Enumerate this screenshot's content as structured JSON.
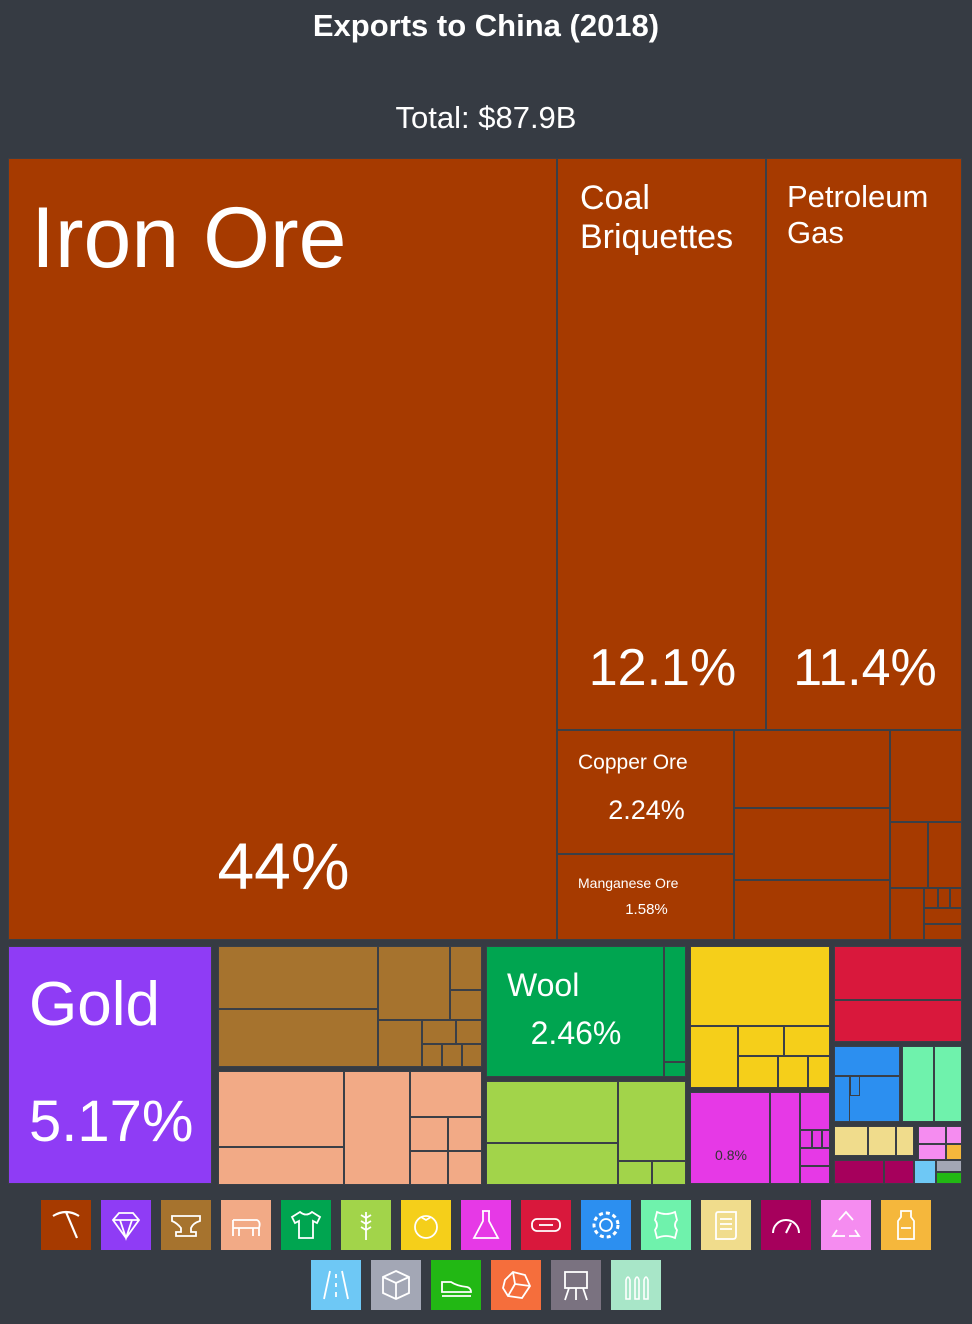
{
  "header": {
    "title": "Exports to China (2018)",
    "total": "Total: $87.9B"
  },
  "chart_data": {
    "type": "treemap",
    "title": "Exports to China (2018)",
    "total_label": "Total: $87.9B",
    "labeled_items": [
      {
        "name": "Iron Ore",
        "share_pct": 44,
        "share_label": "44%",
        "category": "mineral-products",
        "color": "#a63a00"
      },
      {
        "name": "Coal Briquettes",
        "share_pct": 12.1,
        "share_label": "12.1%",
        "category": "mineral-products",
        "color": "#a63a00"
      },
      {
        "name": "Petroleum Gas",
        "share_pct": 11.4,
        "share_label": "11.4%",
        "category": "mineral-products",
        "color": "#a63a00"
      },
      {
        "name": "Copper Ore",
        "share_pct": 2.24,
        "share_label": "2.24%",
        "category": "mineral-products",
        "color": "#a63a00"
      },
      {
        "name": "Manganese Ore",
        "share_pct": 1.58,
        "share_label": "1.58%",
        "category": "mineral-products",
        "color": "#a63a00"
      },
      {
        "name": "Gold",
        "share_pct": 5.17,
        "share_label": "5.17%",
        "category": "precious-metals",
        "color": "#8f3cf5"
      },
      {
        "name": "Wool",
        "share_pct": 2.46,
        "share_label": "2.46%",
        "category": "textiles",
        "color": "#00a550"
      },
      {
        "name": "",
        "share_pct": 0.8,
        "share_label": "0.8%",
        "category": "chemical-products",
        "color": "#e639e6"
      }
    ],
    "legend": [
      {
        "icon": "pickaxe-icon",
        "category": "mineral-products",
        "color": "#a63a00"
      },
      {
        "icon": "diamond-icon",
        "category": "precious-metals",
        "color": "#8f3cf5"
      },
      {
        "icon": "anvil-icon",
        "category": "metals",
        "color": "#a6732e"
      },
      {
        "icon": "pig-icon",
        "category": "animal-products",
        "color": "#f2aa86"
      },
      {
        "icon": "shirt-icon",
        "category": "textiles",
        "color": "#00a550"
      },
      {
        "icon": "wheat-icon",
        "category": "vegetable-products",
        "color": "#a2d44a"
      },
      {
        "icon": "tomato-icon",
        "category": "foodstuffs",
        "color": "#f5cf1a"
      },
      {
        "icon": "flask-icon",
        "category": "chemical-products",
        "color": "#e639e6"
      },
      {
        "icon": "pipe-icon",
        "category": "plastics-rubbers",
        "color": "#d9183c"
      },
      {
        "icon": "gear-icon",
        "category": "machines",
        "color": "#2c8ff0"
      },
      {
        "icon": "hide-icon",
        "category": "animal-hides",
        "color": "#6ff2ac"
      },
      {
        "icon": "scroll-icon",
        "category": "paper-goods",
        "color": "#f0dc8c"
      },
      {
        "icon": "gauge-icon",
        "category": "instruments",
        "color": "#a6005c"
      },
      {
        "icon": "recycle-icon",
        "category": "miscellaneous",
        "color": "#f58cf0"
      },
      {
        "icon": "bottle-icon",
        "category": "animal-vegetable-fats",
        "color": "#f5b73c"
      },
      {
        "icon": "road-icon",
        "category": "transportation",
        "color": "#6ec8f5"
      },
      {
        "icon": "box-icon",
        "category": "stone-glass",
        "color": "#a3a7b5"
      },
      {
        "icon": "shoe-icon",
        "category": "footwear-headwear",
        "color": "#22b814"
      },
      {
        "icon": "stone-icon",
        "category": "stone-and-glass",
        "color": "#f56e3c"
      },
      {
        "icon": "easel-icon",
        "category": "arts-antiques",
        "color": "#7a7280"
      },
      {
        "icon": "bullets-icon",
        "category": "weapons",
        "color": "#a8e6c8"
      }
    ]
  }
}
